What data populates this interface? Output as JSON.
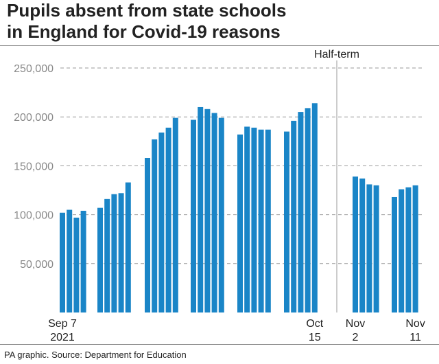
{
  "chart_data": {
    "type": "bar",
    "title": [
      "Pupils absent from state schools",
      "in England for Covid-19 reasons"
    ],
    "xlabel": "",
    "ylabel": "",
    "ylim": [
      0,
      250000
    ],
    "yticks": [
      50000,
      100000,
      150000,
      200000,
      250000
    ],
    "ytick_labels": [
      "50,000",
      "100,000",
      "150,000",
      "200,000",
      "250,000"
    ],
    "grid": true,
    "annotation": "Half-term",
    "color": "#1a85c7",
    "x_labels": [
      {
        "lines": [
          "Sep 7",
          "2021"
        ],
        "at_bar": 0
      },
      {
        "lines": [
          "Oct",
          "15"
        ],
        "at_bar": 28
      },
      {
        "lines": [
          "Nov",
          "2"
        ],
        "at_bar": 29
      },
      {
        "lines": [
          "Nov",
          "11"
        ],
        "at_bar": 36
      }
    ],
    "weeks": [
      [
        102000,
        105000,
        97000,
        104000
      ],
      [
        107000,
        116000,
        121000,
        122000,
        133000
      ],
      [
        158000,
        177000,
        184000,
        189000,
        199000
      ],
      [
        197000,
        210000,
        208000,
        204000,
        199000
      ],
      [
        182000,
        190000,
        189000,
        187000,
        187000
      ],
      [
        185000,
        196000,
        205000,
        209000,
        214000
      ],
      [
        139000,
        137000,
        131000,
        130000
      ],
      [
        118000,
        126000,
        128000,
        130000
      ]
    ]
  },
  "footer": {
    "source": "PA graphic. Source: Department for Education"
  }
}
